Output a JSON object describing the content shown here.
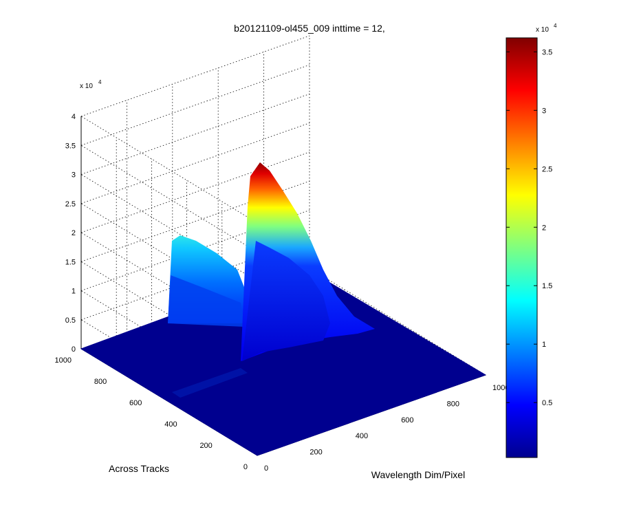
{
  "chart_data": {
    "type": "surface",
    "title": "b20121109-ol455_009 inttime = 12,",
    "xlabel": "Wavelength Dim/Pixel",
    "ylabel": "Across Tracks",
    "zlabel": "",
    "x_ticks": [
      "0",
      "200",
      "400",
      "600",
      "800",
      "1000"
    ],
    "y_ticks": [
      "0",
      "200",
      "400",
      "600",
      "800",
      "1000"
    ],
    "z_ticks": [
      "0",
      "0.5",
      "1",
      "1.5",
      "2",
      "2.5",
      "3",
      "3.5",
      "4"
    ],
    "z_exponent_label": "x 10",
    "z_exponent": "4",
    "xlim": [
      0,
      1000
    ],
    "ylim": [
      0,
      1000
    ],
    "zlim": [
      0,
      40000
    ],
    "grid": true,
    "colormap": "jet",
    "colorbar": {
      "ticks": [
        "0.5",
        "1",
        "1.5",
        "2",
        "2.5",
        "3",
        "3.5"
      ],
      "exponent_label": "x 10",
      "exponent": "4",
      "range": [
        300,
        36200
      ],
      "placement": "right"
    },
    "surface_features": [
      {
        "label": "strong peak",
        "x_center": 150,
        "y_center": 900,
        "peak_value": 32000
      },
      {
        "label": "weak peak",
        "x_center": 380,
        "y_center": 800,
        "peak_value": 19000
      }
    ]
  }
}
